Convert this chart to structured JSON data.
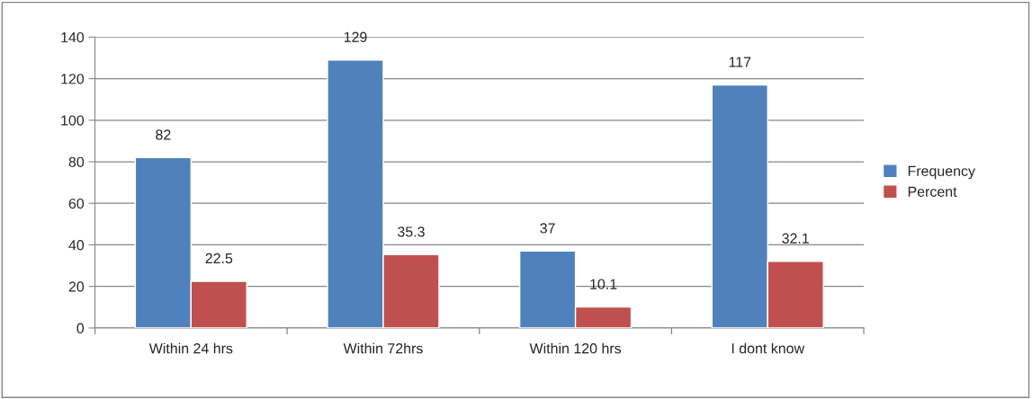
{
  "chart_data": {
    "type": "bar",
    "categories": [
      "Within 24 hrs",
      "Within 72hrs",
      "Within 120 hrs",
      "I dont know"
    ],
    "series": [
      {
        "name": "Frequency",
        "color": "#4f81bd",
        "values": [
          82,
          129,
          37,
          117
        ]
      },
      {
        "name": "Percent",
        "color": "#c0504d",
        "values": [
          22.5,
          35.3,
          10.1,
          32.1
        ]
      }
    ],
    "ylim": [
      0,
      140
    ],
    "yticks": [
      0,
      20,
      40,
      60,
      80,
      100,
      120,
      140
    ],
    "grid": "y",
    "legend": "right",
    "data_labels": true
  }
}
